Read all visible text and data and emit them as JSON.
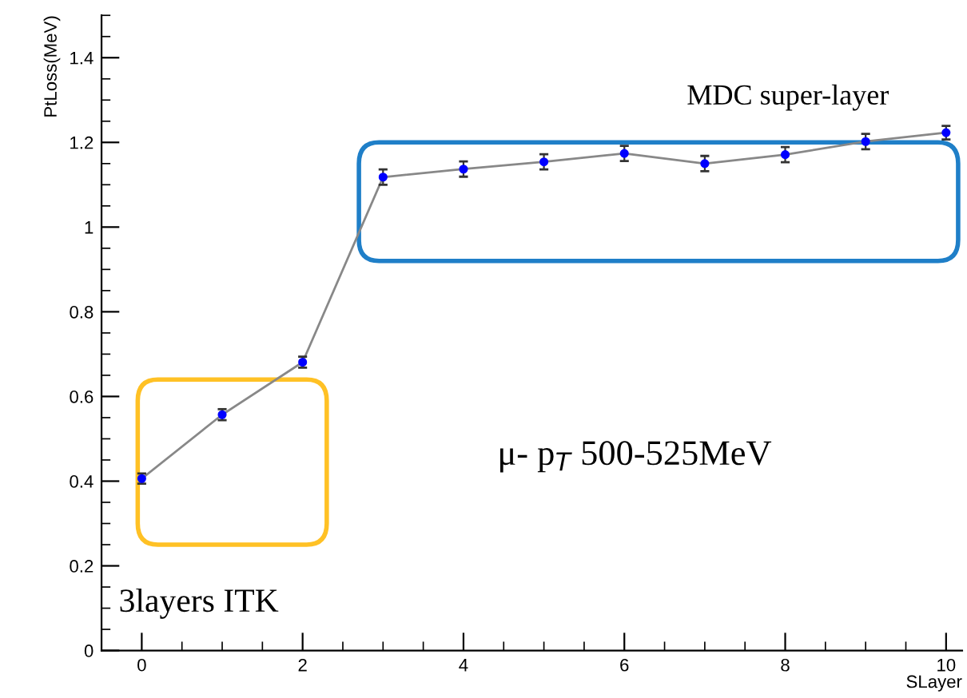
{
  "chart_data": {
    "type": "line",
    "xlabel": "SLayer",
    "ylabel": "PtLoss(MeV)",
    "x": [
      0,
      1,
      2,
      3,
      4,
      5,
      6,
      7,
      8,
      9,
      10
    ],
    "series": [
      {
        "color": "#0000ff",
        "values": [
          0.406,
          0.557,
          0.681,
          1.118,
          1.137,
          1.154,
          1.174,
          1.15,
          1.171,
          1.202,
          1.223
        ],
        "errors": [
          0.012,
          0.013,
          0.013,
          0.018,
          0.018,
          0.018,
          0.018,
          0.018,
          0.018,
          0.018,
          0.016
        ]
      }
    ],
    "xlim": [
      -0.5,
      10.2
    ],
    "ylim": [
      0,
      1.5
    ],
    "xticks": [
      0,
      2,
      4,
      6,
      8,
      10
    ],
    "yticks": [
      0,
      0.2,
      0.4,
      0.6,
      0.8,
      1,
      1.2,
      1.4
    ],
    "annotations": [
      "MDC super-layer",
      "3layers ITK",
      "μ- p$_{T}$ 500-525MeV"
    ],
    "marker": "circle",
    "line_style": "solid",
    "grid": false
  }
}
